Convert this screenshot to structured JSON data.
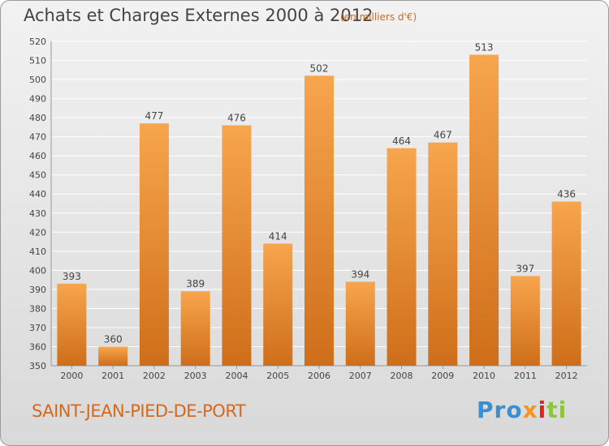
{
  "header": {
    "title": "Achats et Charges Externes 2000 à 2012",
    "subtitle": "(en milliers d'€)"
  },
  "footer": {
    "location": "SAINT-JEAN-PIED-DE-PORT",
    "brand": [
      "Pro",
      "x",
      "i",
      "ti"
    ]
  },
  "colors": {
    "bar_light": "#f7a54e",
    "bar_dark": "#cf6e1a",
    "accent": "#d2691e",
    "grid": "#ffffff"
  },
  "chart_data": {
    "type": "bar",
    "categories": [
      "2000",
      "2001",
      "2002",
      "2003",
      "2004",
      "2005",
      "2006",
      "2007",
      "2008",
      "2009",
      "2010",
      "2011",
      "2012"
    ],
    "values": [
      393,
      360,
      477,
      389,
      476,
      414,
      502,
      394,
      464,
      467,
      513,
      397,
      436
    ],
    "title": "Achats et Charges Externes 2000 à 2012",
    "xlabel": "",
    "ylabel": "",
    "ylim": [
      350,
      520
    ],
    "yticks": [
      350,
      360,
      370,
      380,
      390,
      400,
      410,
      420,
      430,
      440,
      450,
      460,
      470,
      480,
      490,
      500,
      510,
      520
    ],
    "grid": true,
    "data_labels": true
  }
}
